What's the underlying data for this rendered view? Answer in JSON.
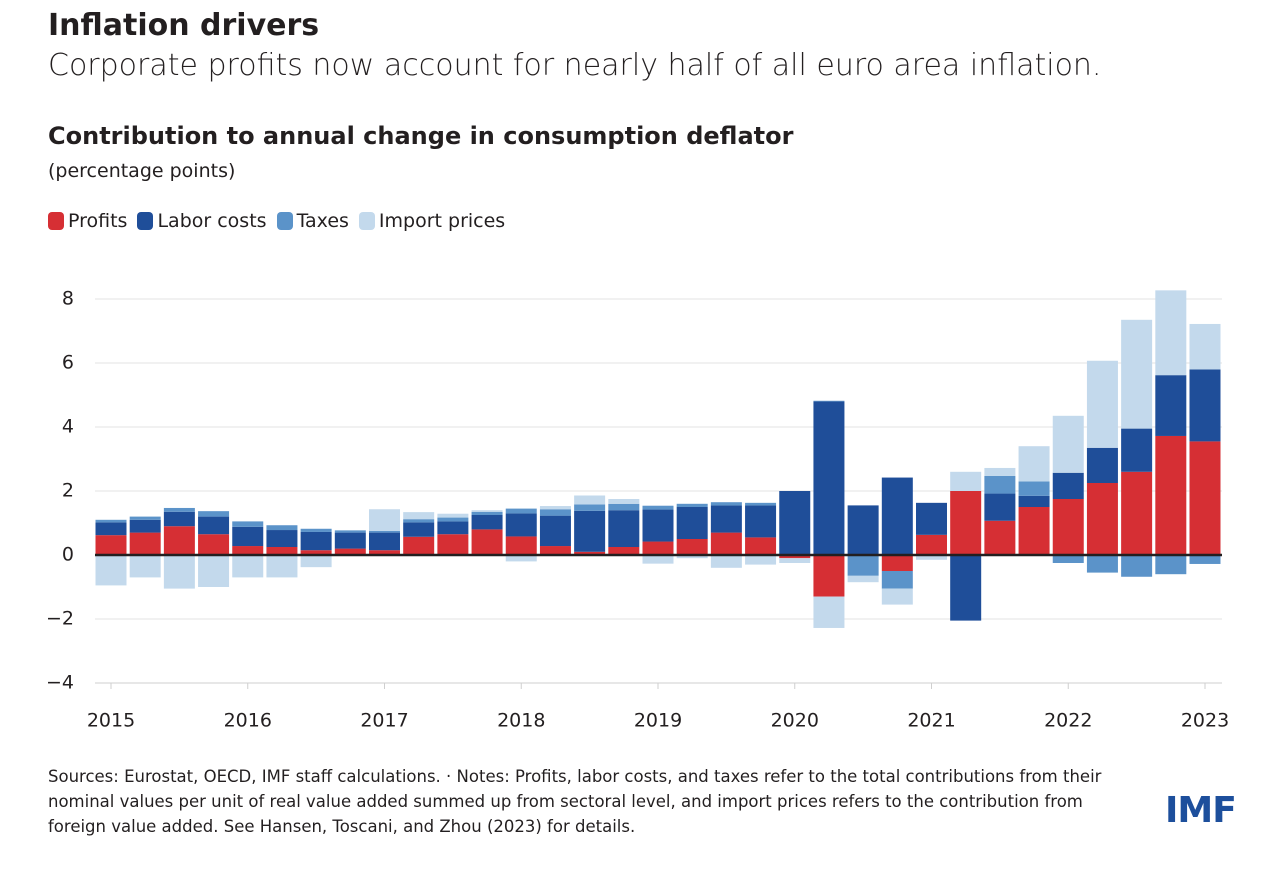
{
  "chart_data": {
    "type": "stacked_bar",
    "title": "Inflation drivers",
    "subtitle": "Corporate profits now account for nearly half of all euro area inflation.",
    "chart_title": "Contribution to annual change in consumption deflator",
    "unit_label": "(percentage points)",
    "note": "Sources: Eurostat, OECD, IMF staff calculations. · Notes: Profits, labor costs, and taxes refer to the total contributions from their nominal values per unit of real value added summed up from sectoral level, and import prices refers to the contribution from foreign value added. See Hansen, Toscani, and Zhou (2023) for details.",
    "logo": "IMF",
    "categories": [
      "2015",
      null,
      null,
      null,
      "2016",
      null,
      null,
      null,
      "2017",
      null,
      null,
      null,
      "2018",
      null,
      null,
      null,
      "2019",
      null,
      null,
      null,
      "2020",
      null,
      null,
      null,
      "2021",
      null,
      null,
      null,
      "2022",
      null,
      null,
      null,
      "2023"
    ],
    "series": [
      {
        "name": "Profits",
        "color": "#d62f34",
        "values": [
          0.62,
          0.7,
          0.9,
          0.65,
          0.28,
          0.25,
          0.15,
          0.2,
          0.15,
          0.57,
          0.65,
          0.8,
          0.58,
          0.28,
          0.1,
          0.25,
          0.42,
          0.5,
          0.7,
          0.55,
          -0.1,
          -1.3,
          0,
          -0.5,
          0.63,
          2.0,
          1.07,
          1.5,
          1.75,
          2.25,
          2.6,
          3.72,
          3.55
        ]
      },
      {
        "name": "Labor costs",
        "color": "#1f4e99",
        "values": [
          0.4,
          0.4,
          0.45,
          0.55,
          0.6,
          0.53,
          0.57,
          0.5,
          0.55,
          0.45,
          0.4,
          0.45,
          0.72,
          0.95,
          1.28,
          1.15,
          1.0,
          1.0,
          0.85,
          1.0,
          2.0,
          4.8,
          1.55,
          2.42,
          1.0,
          -2.05,
          0.85,
          0.35,
          0.82,
          1.1,
          1.35,
          1.9,
          2.25
        ]
      },
      {
        "name": "Taxes",
        "color": "#5b93c9",
        "values": [
          0.08,
          0.1,
          0.12,
          0.17,
          0.17,
          0.15,
          0.1,
          0.07,
          0.05,
          0.1,
          0.12,
          0.1,
          0.15,
          0.2,
          0.2,
          0.2,
          0.12,
          0.1,
          0.1,
          0.08,
          0,
          0.02,
          -0.65,
          -0.55,
          0,
          0,
          0.55,
          0.45,
          -0.25,
          -0.55,
          -0.68,
          -0.6,
          -0.28
        ]
      },
      {
        "name": "Import prices",
        "color": "#c3d9ec",
        "values": [
          -0.95,
          -0.7,
          -1.05,
          -1.0,
          -0.7,
          -0.7,
          -0.38,
          0,
          0.68,
          0.22,
          0.12,
          0.05,
          -0.2,
          0.1,
          0.28,
          0.15,
          -0.27,
          -0.1,
          -0.4,
          -0.3,
          -0.15,
          -0.98,
          -0.2,
          -0.5,
          -0.15,
          0.6,
          0.25,
          1.1,
          1.78,
          2.72,
          3.4,
          2.65,
          1.42
        ]
      }
    ],
    "ylim": [
      -4,
      8
    ],
    "yticks": [
      {
        "value": -4,
        "label": "−4"
      },
      {
        "value": -2,
        "label": "−2"
      },
      0,
      2,
      4,
      6,
      8
    ],
    "grid": true
  }
}
